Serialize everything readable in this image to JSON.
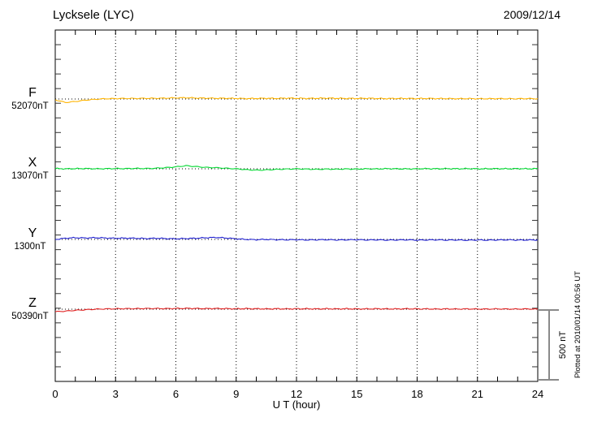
{
  "header": {
    "title": "Lycksele (LYC)",
    "date": "2009/12/14"
  },
  "axis": {
    "xlabel": "U T (hour)"
  },
  "scale_bar": {
    "label": "500 nT",
    "color": "#8a8a8a"
  },
  "footer_note": "Plotted at 2010/01/14 00:56 UT",
  "chart_data": {
    "type": "line",
    "title": "Lycksele (LYC)",
    "date": "2009/12/14",
    "xlabel": "U T (hour)",
    "xlim": [
      0,
      24
    ],
    "x_ticks": [
      0,
      3,
      6,
      9,
      12,
      15,
      18,
      21,
      24
    ],
    "grid": "dotted vertical lines every 3 hours, dotted horizontal baseline per trace",
    "legend_position": "left margin, one colored label per trace",
    "scale_bar_nT": 500,
    "x_start": 0,
    "x_step": 0.5,
    "series": [
      {
        "name": "F",
        "baseline_label": "52070nT",
        "baseline_nT": 52070,
        "color": "#ffb300",
        "offsets_nT": [
          -5,
          -25,
          -18,
          -8,
          -2,
          2,
          3,
          4,
          4,
          5,
          5,
          6,
          8,
          9,
          7,
          6,
          5,
          5,
          4,
          3,
          4,
          5,
          4,
          6,
          5,
          4,
          5,
          6,
          5,
          4,
          4,
          5,
          4,
          3,
          4,
          4,
          3,
          4,
          3,
          3,
          2,
          3,
          2,
          2,
          3,
          2,
          2,
          3,
          2
        ]
      },
      {
        "name": "X",
        "baseline_label": "13070nT",
        "baseline_nT": 13070,
        "color": "#00d830",
        "offsets_nT": [
          2,
          0,
          1,
          2,
          0,
          1,
          2,
          1,
          3,
          2,
          4,
          8,
          14,
          22,
          16,
          10,
          8,
          4,
          0,
          -6,
          -10,
          -8,
          -4,
          -2,
          0,
          -2,
          -4,
          -2,
          -3,
          -1,
          -2,
          0,
          -1,
          1,
          0,
          -1,
          0,
          1,
          0,
          1,
          0,
          1,
          0,
          0,
          1,
          0,
          1,
          0,
          1
        ]
      },
      {
        "name": "Y",
        "baseline_label": "1300nT",
        "baseline_nT": 1300,
        "color": "#2020d0",
        "offsets_nT": [
          0,
          8,
          12,
          10,
          12,
          10,
          8,
          9,
          8,
          6,
          8,
          6,
          4,
          6,
          8,
          12,
          14,
          10,
          4,
          0,
          -2,
          0,
          -2,
          -3,
          -2,
          -4,
          -3,
          -2,
          -4,
          -3,
          -2,
          -4,
          -3,
          -5,
          -4,
          -3,
          -5,
          -4,
          -3,
          -5,
          -4,
          -6,
          -4,
          -5,
          -4,
          -3,
          -5,
          -4,
          -4
        ]
      },
      {
        "name": "Z",
        "baseline_label": "50390nT",
        "baseline_nT": 50390,
        "color": "#e02020",
        "offsets_nT": [
          -18,
          -14,
          -8,
          -4,
          0,
          2,
          3,
          4,
          4,
          5,
          5,
          4,
          5,
          6,
          5,
          4,
          5,
          4,
          3,
          4,
          3,
          2,
          3,
          2,
          3,
          3,
          2,
          3,
          2,
          3,
          2,
          2,
          3,
          2,
          2,
          3,
          2,
          2,
          1,
          2,
          1,
          2,
          1,
          1,
          2,
          1,
          1,
          2,
          0
        ]
      }
    ]
  }
}
